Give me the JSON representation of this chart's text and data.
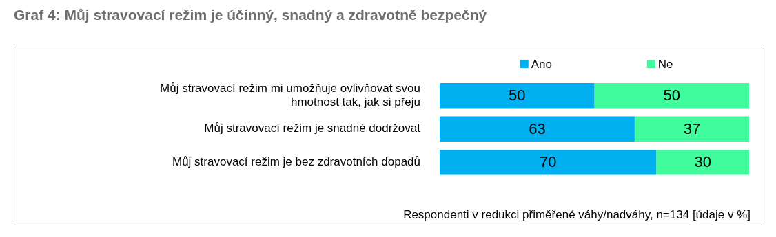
{
  "chart_data": {
    "type": "bar",
    "orientation": "horizontal",
    "stacked": true,
    "title": "Graf 4: Můj stravovací režim je účinný, snadný a zdravotně bezpečný",
    "categories": [
      "Můj stravovací režim mi umožňuje ovlivňovat svou hmotnost tak, jak si přeju",
      "Můj stravovací režim je snadné dodržovat",
      "Můj stravovací režim je bez zdravotních dopadů"
    ],
    "series": [
      {
        "name": "Ano",
        "color": "#00b0f0",
        "values": [
          50,
          63,
          70
        ]
      },
      {
        "name": "Ne",
        "color": "#40fc9c",
        "values": [
          50,
          37,
          30
        ]
      }
    ],
    "xlim": [
      0,
      100
    ],
    "tick_labels": false,
    "legend": "top",
    "data_labels": true,
    "annotations": [
      "Respondenti v redukci přiměřené váhy/nadváhy, n=134 [údaje v %]"
    ]
  }
}
